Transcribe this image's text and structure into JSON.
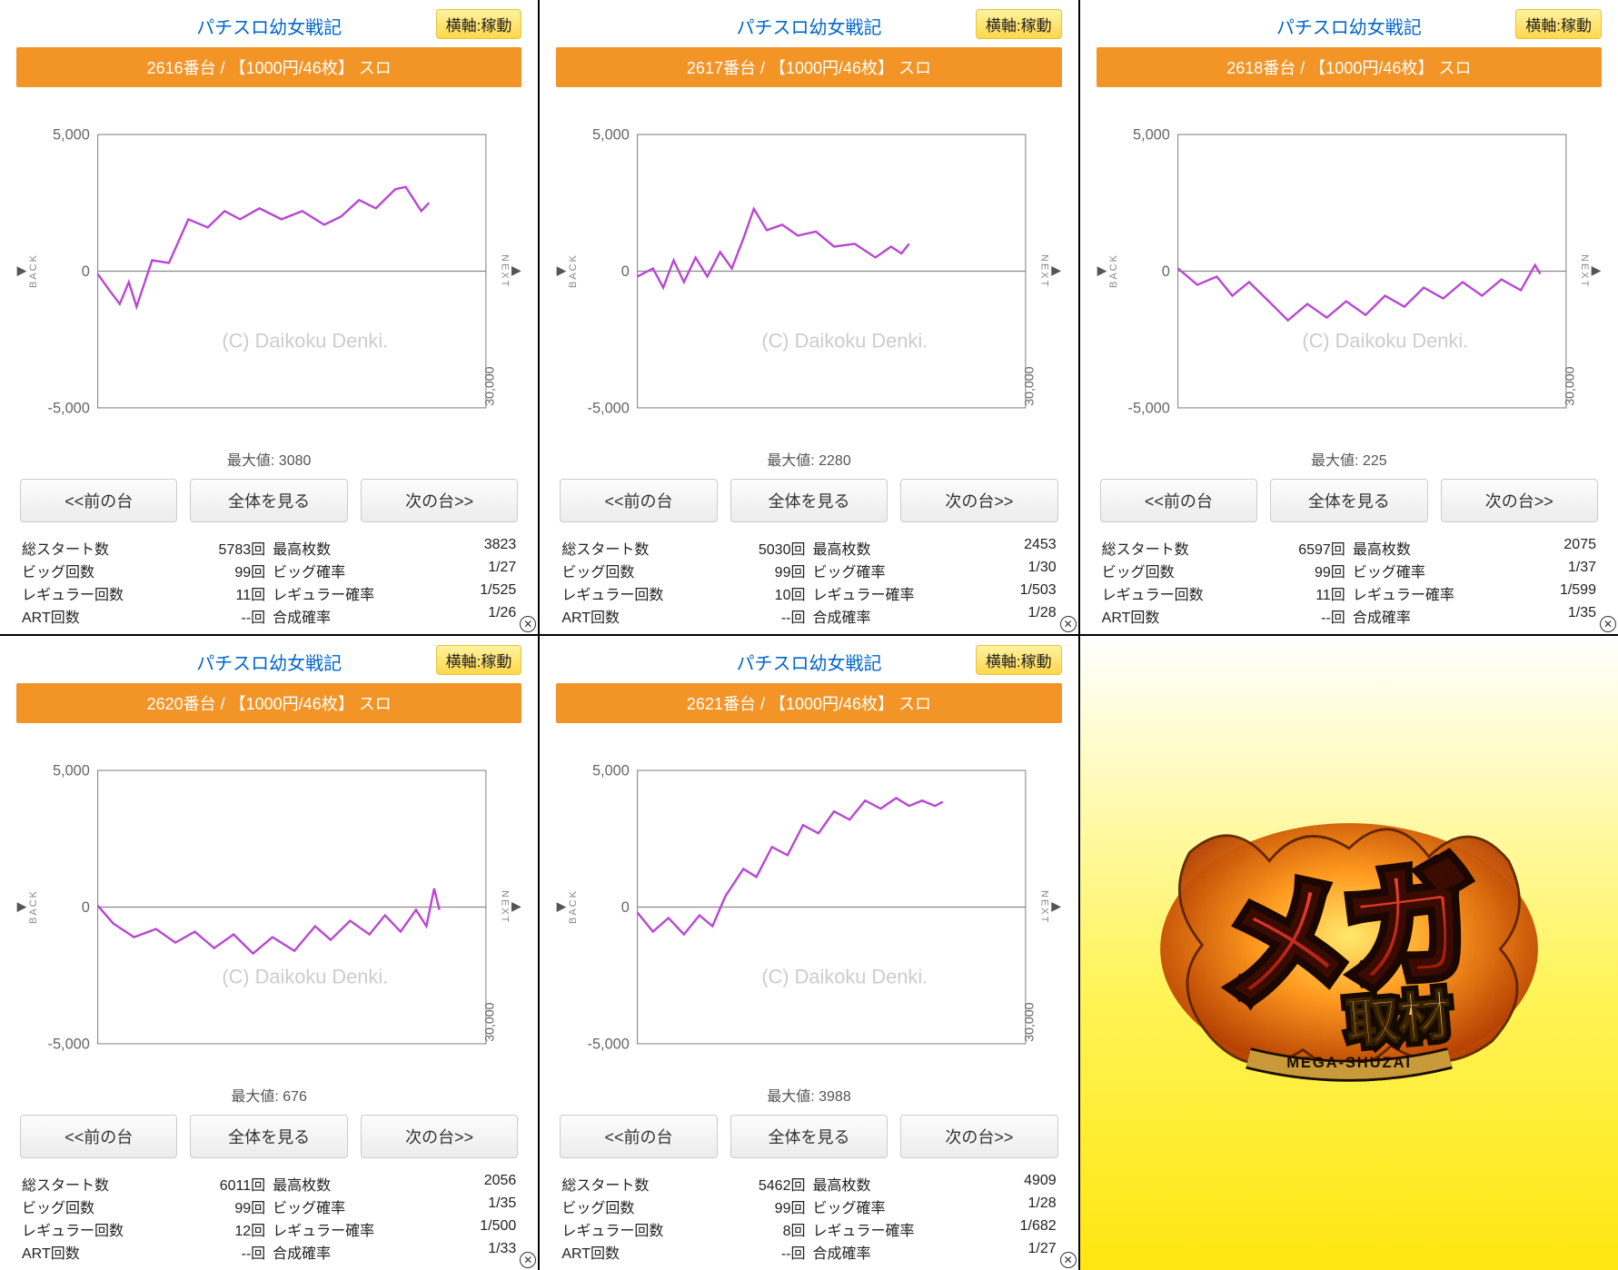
{
  "common": {
    "title": "パチスロ幼女戦記",
    "badge": "横軸:稼動",
    "watermark": "(C) Daikoku Denki.",
    "back": "BACK",
    "next": "NEXT",
    "btn_prev": "<<前の台",
    "btn_all": "全体を見る",
    "btn_next": "次の台>>",
    "max_label": "最大値:",
    "x_max_label": "30,000",
    "stat_labels": {
      "start": "総スタート数",
      "big": "ビッグ回数",
      "reg": "レギュラー回数",
      "art": "ART回数",
      "maxmed": "最高枚数",
      "bigp": "ビッグ確率",
      "regp": "レギュラー確率",
      "gosei": "合成確率"
    },
    "chart_style": {
      "line_color": "#b946d4",
      "line_width": 2.2,
      "axis_color": "#888888",
      "grid_color": "#888888",
      "bg": "#ffffff",
      "label_color": "#666666",
      "label_fontsize": 15,
      "ylim": [
        -5000,
        5000
      ],
      "yticks": [
        -5000,
        0,
        5000
      ],
      "ytick_labels": [
        "-5,000",
        "0",
        "5,000"
      ]
    }
  },
  "panels": [
    {
      "bar": "2616番台 / 【1000円/46枚】 スロ",
      "max": "3080",
      "stats": {
        "start": "5783回",
        "maxmed": "3823",
        "big": "99回",
        "bigp": "1/27",
        "reg": "11回",
        "regp": "1/525",
        "art": "--回",
        "gosei": "1/26"
      },
      "series": [
        [
          0,
          -100
        ],
        [
          900,
          -700
        ],
        [
          1700,
          -1200
        ],
        [
          2400,
          -400
        ],
        [
          3000,
          -1300
        ],
        [
          4200,
          400
        ],
        [
          5500,
          300
        ],
        [
          7000,
          1900
        ],
        [
          8500,
          1600
        ],
        [
          9800,
          2200
        ],
        [
          11000,
          1900
        ],
        [
          12500,
          2300
        ],
        [
          14200,
          1900
        ],
        [
          15800,
          2200
        ],
        [
          17500,
          1700
        ],
        [
          18800,
          2000
        ],
        [
          20200,
          2600
        ],
        [
          21500,
          2300
        ],
        [
          23000,
          3000
        ],
        [
          23800,
          3080
        ],
        [
          25000,
          2200
        ],
        [
          25600,
          2500
        ]
      ]
    },
    {
      "bar": "2617番台 / 【1000円/46枚】 スロ",
      "max": "2280",
      "stats": {
        "start": "5030回",
        "maxmed": "2453",
        "big": "99回",
        "bigp": "1/30",
        "reg": "10回",
        "regp": "1/503",
        "art": "--回",
        "gosei": "1/28"
      },
      "series": [
        [
          0,
          -200
        ],
        [
          1200,
          100
        ],
        [
          2000,
          -600
        ],
        [
          2800,
          400
        ],
        [
          3600,
          -400
        ],
        [
          4500,
          500
        ],
        [
          5400,
          -200
        ],
        [
          6400,
          700
        ],
        [
          7300,
          100
        ],
        [
          8200,
          1200
        ],
        [
          9000,
          2280
        ],
        [
          10000,
          1500
        ],
        [
          11200,
          1700
        ],
        [
          12400,
          1300
        ],
        [
          13800,
          1450
        ],
        [
          15200,
          900
        ],
        [
          16800,
          1000
        ],
        [
          18400,
          500
        ],
        [
          19600,
          900
        ],
        [
          20400,
          650
        ],
        [
          21000,
          1000
        ]
      ]
    },
    {
      "bar": "2618番台 / 【1000円/46枚】 スロ",
      "max": "225",
      "stats": {
        "start": "6597回",
        "maxmed": "2075",
        "big": "99回",
        "bigp": "1/37",
        "reg": "11回",
        "regp": "1/599",
        "art": "--回",
        "gosei": "1/35"
      },
      "series": [
        [
          0,
          100
        ],
        [
          1500,
          -500
        ],
        [
          3000,
          -200
        ],
        [
          4200,
          -900
        ],
        [
          5500,
          -400
        ],
        [
          6800,
          -1000
        ],
        [
          8500,
          -1800
        ],
        [
          10000,
          -1200
        ],
        [
          11500,
          -1700
        ],
        [
          13000,
          -1100
        ],
        [
          14500,
          -1600
        ],
        [
          16000,
          -900
        ],
        [
          17500,
          -1300
        ],
        [
          19000,
          -600
        ],
        [
          20500,
          -1000
        ],
        [
          22000,
          -400
        ],
        [
          23500,
          -900
        ],
        [
          25000,
          -300
        ],
        [
          26500,
          -700
        ],
        [
          27600,
          225
        ],
        [
          28000,
          -100
        ]
      ]
    },
    {
      "bar": "2620番台 / 【1000円/46枚】 スロ",
      "max": "676",
      "stats": {
        "start": "6011回",
        "maxmed": "2056",
        "big": "99回",
        "bigp": "1/35",
        "reg": "12回",
        "regp": "1/500",
        "art": "--回",
        "gosei": "1/33"
      },
      "series": [
        [
          0,
          50
        ],
        [
          1200,
          -600
        ],
        [
          2800,
          -1100
        ],
        [
          4500,
          -800
        ],
        [
          6000,
          -1300
        ],
        [
          7500,
          -900
        ],
        [
          9000,
          -1500
        ],
        [
          10500,
          -1000
        ],
        [
          12000,
          -1700
        ],
        [
          13500,
          -1100
        ],
        [
          15200,
          -1600
        ],
        [
          16800,
          -700
        ],
        [
          18000,
          -1200
        ],
        [
          19500,
          -500
        ],
        [
          21000,
          -1000
        ],
        [
          22200,
          -300
        ],
        [
          23400,
          -900
        ],
        [
          24600,
          -100
        ],
        [
          25400,
          -700
        ],
        [
          26000,
          676
        ],
        [
          26400,
          -100
        ]
      ]
    },
    {
      "bar": "2621番台 / 【1000円/46枚】 スロ",
      "max": "3988",
      "stats": {
        "start": "5462回",
        "maxmed": "4909",
        "big": "99回",
        "bigp": "1/28",
        "reg": "8回",
        "regp": "1/682",
        "art": "--回",
        "gosei": "1/27"
      },
      "series": [
        [
          0,
          -200
        ],
        [
          1200,
          -900
        ],
        [
          2400,
          -400
        ],
        [
          3600,
          -1000
        ],
        [
          4800,
          -300
        ],
        [
          5800,
          -700
        ],
        [
          6800,
          400
        ],
        [
          8200,
          1400
        ],
        [
          9200,
          1100
        ],
        [
          10400,
          2200
        ],
        [
          11600,
          1900
        ],
        [
          12800,
          3000
        ],
        [
          14000,
          2700
        ],
        [
          15200,
          3500
        ],
        [
          16400,
          3200
        ],
        [
          17600,
          3900
        ],
        [
          18800,
          3600
        ],
        [
          20000,
          3988
        ],
        [
          21000,
          3700
        ],
        [
          22000,
          3900
        ],
        [
          23000,
          3700
        ],
        [
          23600,
          3850
        ]
      ]
    }
  ],
  "logo": {
    "text_main": "メガ",
    "text_sub": "取材",
    "text_roman": "MEGA-SHUZAI"
  }
}
